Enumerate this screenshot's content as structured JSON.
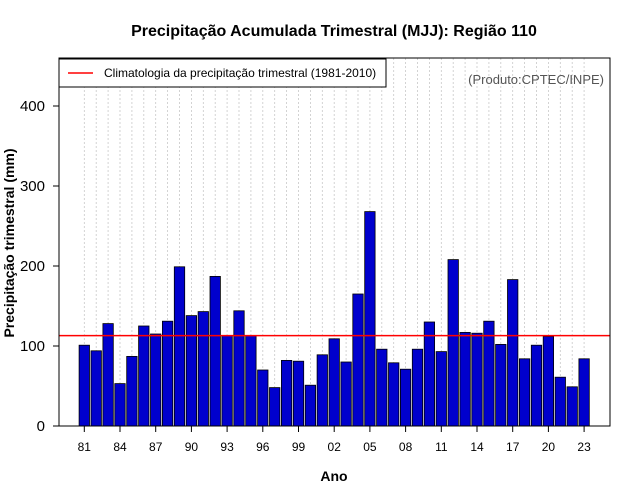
{
  "chart_data": {
    "type": "bar",
    "title": "Precipitação Acumulada Trimestral (MJJ): Região 110",
    "xlabel": "Ano",
    "ylabel": "Precipitação trimestral (mm)",
    "ylim": [
      0,
      460
    ],
    "yticks": [
      0,
      100,
      200,
      300,
      400
    ],
    "xtick_labels": [
      "81",
      "84",
      "87",
      "90",
      "93",
      "96",
      "99",
      "02",
      "05",
      "08",
      "11",
      "14",
      "17",
      "20",
      "23"
    ],
    "xtick_years": [
      1981,
      1984,
      1987,
      1990,
      1993,
      1996,
      1999,
      2002,
      2005,
      2008,
      2011,
      2014,
      2017,
      2020,
      2023
    ],
    "categories": [
      1981,
      1982,
      1983,
      1984,
      1985,
      1986,
      1987,
      1988,
      1989,
      1990,
      1991,
      1992,
      1993,
      1994,
      1995,
      1996,
      1997,
      1998,
      1999,
      2000,
      2001,
      2002,
      2003,
      2004,
      2005,
      2006,
      2007,
      2008,
      2009,
      2010,
      2011,
      2012,
      2013,
      2014,
      2015,
      2016,
      2017,
      2018,
      2019,
      2020,
      2021,
      2022,
      2023
    ],
    "values": [
      101,
      94,
      128,
      53,
      87,
      125,
      115,
      131,
      199,
      138,
      143,
      187,
      113,
      144,
      113,
      70,
      48,
      82,
      81,
      51,
      89,
      109,
      80,
      165,
      268,
      96,
      79,
      71,
      96,
      130,
      93,
      208,
      117,
      116,
      131,
      102,
      183,
      84,
      101,
      112,
      61,
      49,
      84
    ],
    "climatology": {
      "label": "Climatologia da precipitação trimestral (1981-2010)",
      "value": 113,
      "color": "#ff0000"
    },
    "bar_color": "#0000cd",
    "grid": "vertical-dotted",
    "legend_position": "top-left"
  },
  "credit": "(Produto:CPTEC/INPE)"
}
